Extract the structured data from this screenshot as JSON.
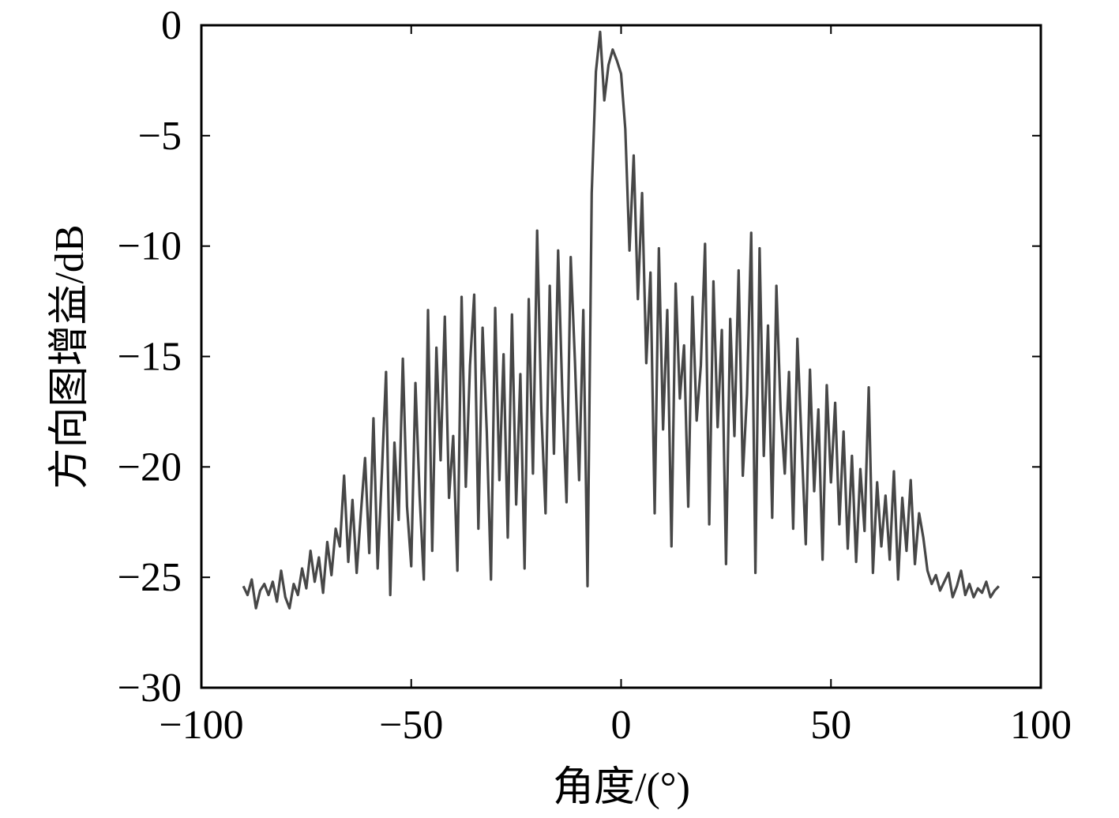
{
  "chart_data": {
    "type": "line",
    "title": "",
    "xlabel": "角度/(°)",
    "ylabel": "方向图增益/dB",
    "xlim": [
      -100,
      100
    ],
    "ylim": [
      -30,
      0
    ],
    "xticks": [
      -100,
      -50,
      0,
      50,
      100
    ],
    "yticks": [
      0,
      -5,
      -10,
      -15,
      -20,
      -25,
      -30
    ],
    "xtick_labels": [
      "−100",
      "−50",
      "0",
      "50",
      "100"
    ],
    "ytick_labels": [
      "0",
      "−5",
      "−10",
      "−15",
      "−20",
      "−25",
      "−30"
    ],
    "grid": false,
    "line_color": "#474747",
    "series": [
      {
        "x": [
          -90,
          -89,
          -88,
          -87,
          -86,
          -85,
          -84,
          -83,
          -82,
          -81,
          -80,
          -79,
          -78,
          -77,
          -76,
          -75,
          -74,
          -73,
          -72,
          -71,
          -70,
          -69,
          -68,
          -67,
          -66,
          -65,
          -64,
          -63,
          -62,
          -61,
          -60,
          -59,
          -58,
          -57,
          -56,
          -55,
          -54,
          -53,
          -52,
          -51,
          -50,
          -49,
          -48,
          -47,
          -46,
          -45,
          -44,
          -43,
          -42,
          -41,
          -40,
          -39,
          -38,
          -37,
          -36,
          -35,
          -34,
          -33,
          -32,
          -31,
          -30,
          -29,
          -28,
          -27,
          -26,
          -25,
          -24,
          -23,
          -22,
          -21,
          -20,
          -19,
          -18,
          -17,
          -16,
          -15,
          -14,
          -13,
          -12,
          -11,
          -10,
          -9,
          -8,
          -7,
          -6,
          -5,
          -4,
          -3,
          -2,
          -1,
          0,
          1,
          2,
          3,
          4,
          5,
          6,
          7,
          8,
          9,
          10,
          11,
          12,
          13,
          14,
          15,
          16,
          17,
          18,
          19,
          20,
          21,
          22,
          23,
          24,
          25,
          26,
          27,
          28,
          29,
          30,
          31,
          32,
          33,
          34,
          35,
          36,
          37,
          38,
          39,
          40,
          41,
          42,
          43,
          44,
          45,
          46,
          47,
          48,
          49,
          50,
          51,
          52,
          53,
          54,
          55,
          56,
          57,
          58,
          59,
          60,
          61,
          62,
          63,
          64,
          65,
          66,
          67,
          68,
          69,
          70,
          71,
          72,
          73,
          74,
          75,
          76,
          77,
          78,
          79,
          80,
          81,
          82,
          83,
          84,
          85,
          86,
          87,
          88,
          89,
          90
        ],
        "y": [
          -25.4,
          -25.8,
          -25.1,
          -26.4,
          -25.6,
          -25.3,
          -25.8,
          -25.2,
          -26.1,
          -24.7,
          -25.9,
          -26.4,
          -25.3,
          -25.8,
          -24.6,
          -25.5,
          -23.8,
          -25.2,
          -24.1,
          -25.7,
          -23.4,
          -24.9,
          -22.8,
          -23.6,
          -20.4,
          -24.3,
          -21.5,
          -24.8,
          -22.1,
          -19.6,
          -23.9,
          -17.8,
          -24.6,
          -20.3,
          -15.7,
          -25.8,
          -18.9,
          -22.4,
          -15.1,
          -21.8,
          -24.5,
          -16.2,
          -21.3,
          -25.1,
          -12.9,
          -23.8,
          -14.6,
          -19.7,
          -13.2,
          -21.4,
          -18.6,
          -24.7,
          -12.3,
          -20.9,
          -15.4,
          -12.2,
          -22.8,
          -13.7,
          -18.4,
          -25.1,
          -12.8,
          -20.6,
          -14.9,
          -23.2,
          -13.1,
          -21.7,
          -15.8,
          -24.6,
          -12.4,
          -20.3,
          -9.3,
          -17.5,
          -22.1,
          -11.8,
          -19.4,
          -10.2,
          -16.7,
          -21.6,
          -10.5,
          -15.2,
          -20.6,
          -12.9,
          -25.4,
          -7.6,
          -2.1,
          -0.3,
          -3.4,
          -1.8,
          -1.1,
          -1.6,
          -2.2,
          -4.7,
          -10.2,
          -5.9,
          -12.4,
          -7.6,
          -15.3,
          -11.2,
          -22.1,
          -10.1,
          -18.3,
          -12.9,
          -23.6,
          -11.7,
          -16.9,
          -14.5,
          -21.8,
          -12.3,
          -17.9,
          -15.4,
          -9.9,
          -22.6,
          -11.6,
          -18.2,
          -13.8,
          -24.4,
          -13.3,
          -18.6,
          -11.1,
          -20.4,
          -16.7,
          -9.4,
          -24.8,
          -10.1,
          -19.5,
          -13.6,
          -22.3,
          -11.8,
          -17.4,
          -20.3,
          -15.7,
          -22.8,
          -14.2,
          -18.9,
          -23.5,
          -15.6,
          -21.1,
          -17.4,
          -24.2,
          -16.3,
          -20.7,
          -17.1,
          -22.6,
          -18.4,
          -23.7,
          -19.5,
          -24.3,
          -20.1,
          -22.9,
          -16.4,
          -24.8,
          -20.7,
          -23.6,
          -21.3,
          -24.2,
          -20.2,
          -25.1,
          -21.4,
          -23.8,
          -20.6,
          -24.4,
          -22.1,
          -23.2,
          -24.7,
          -25.3,
          -24.9,
          -25.6,
          -25.2,
          -24.8,
          -25.9,
          -25.4,
          -24.7,
          -25.8,
          -25.3,
          -25.9,
          -25.5,
          -25.7,
          -25.2,
          -25.9,
          -25.6,
          -25.4
        ]
      }
    ]
  }
}
